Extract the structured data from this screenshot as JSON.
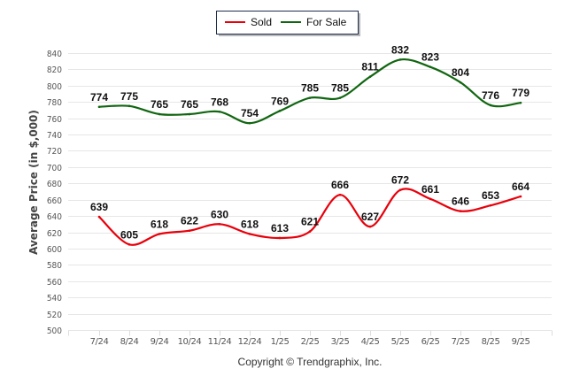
{
  "chart_data": {
    "type": "line",
    "title": "",
    "xlabel": "",
    "ylabel": "Average Price (in $,000)",
    "ylim": [
      500,
      840
    ],
    "y_ticks": [
      500,
      520,
      540,
      560,
      580,
      600,
      620,
      640,
      660,
      680,
      700,
      720,
      740,
      760,
      780,
      800,
      820,
      840
    ],
    "grid": true,
    "legend_position": "top-center",
    "categories": [
      "7/24",
      "8/24",
      "9/24",
      "10/24",
      "11/24",
      "12/24",
      "1/25",
      "2/25",
      "3/25",
      "4/25",
      "5/25",
      "6/25",
      "7/25",
      "8/25",
      "9/25"
    ],
    "series": [
      {
        "name": "Sold",
        "color": "#e8000b",
        "values": [
          639,
          605,
          618,
          622,
          630,
          618,
          613,
          621,
          666,
          627,
          672,
          661,
          646,
          653,
          664
        ]
      },
      {
        "name": "For Sale",
        "color": "#116611",
        "values": [
          774,
          775,
          765,
          765,
          768,
          754,
          769,
          785,
          785,
          811,
          832,
          823,
          804,
          776,
          779
        ]
      }
    ],
    "footer": "Copyright © Trendgraphix, Inc."
  }
}
